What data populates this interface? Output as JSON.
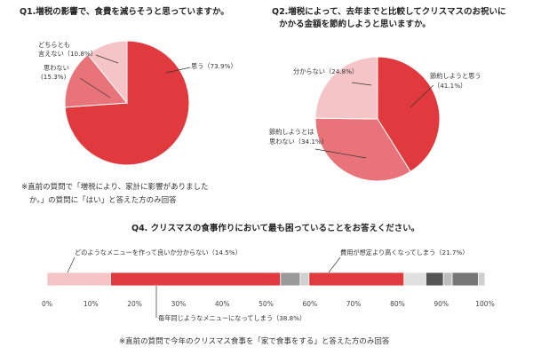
{
  "q1": {
    "title": "Q1.増税の影響で、食費を減らそうと思っていますか。",
    "labels": {
      "yes": "思う（73.9%）",
      "no_1": "思わない",
      "no_2": "(15.3%)",
      "neutral_1": "どちらとも",
      "neutral_2": "言えない（10.8%）"
    },
    "note_1": "※直前の質問で「増税により、家計に影響がありました",
    "note_2": "か。」の質問に「はい」と答えた方のみ回答"
  },
  "q2": {
    "title_1": "Q2.増税によって、去年までと比較してクリスマスのお祝いに",
    "title_2": "かかる金額を節約しようと思いますか。",
    "labels": {
      "save_1": "節約しようと思う",
      "save_2": "（41.1%）",
      "not_save_1": "節約しようとは",
      "not_save_2": "思わない（34.1%）",
      "unknown": "分からない（24.8%）"
    }
  },
  "q4": {
    "title": "Q4. クリスマスの食事作りにおいて最も困っていることをお答えください。",
    "labels": {
      "menu_unknown": "どのようなメニューを作って良いか分からない（14.5%）",
      "cost_high": "費用が想定より高くなってしまう（21.7%）",
      "same_menu": "毎年同じようなメニューになってしまう（38.8%）"
    },
    "ticks": [
      "0%",
      "10%",
      "20%",
      "30%",
      "40%",
      "50%",
      "60%",
      "70%",
      "80%",
      "90%",
      "100%"
    ],
    "note": "※直前の質問で今年のクリスマス食事を「家で食事をする」と答えた方のみ回答"
  },
  "chart_data": [
    {
      "type": "pie",
      "title": "Q1.増税の影響で、食費を減らそうと思っていますか。",
      "categories": [
        "思う",
        "思わない",
        "どちらとも言えない"
      ],
      "values": [
        73.9,
        15.3,
        10.8
      ],
      "colors": [
        "#e03a3e",
        "#e8747a",
        "#f4c4c6"
      ]
    },
    {
      "type": "pie",
      "title": "Q2.増税によって、去年までと比較してクリスマスのお祝いにかかる金額を節約しようと思いますか。",
      "categories": [
        "節約しようと思う",
        "節約しようとは思わない",
        "分からない"
      ],
      "values": [
        41.1,
        34.1,
        24.8
      ],
      "colors": [
        "#e03a3e",
        "#e8747a",
        "#f4c4c6"
      ]
    },
    {
      "type": "bar",
      "orientation": "horizontal-stacked",
      "title": "Q4. クリスマスの食事作りにおいて最も困っていることをお答えください。",
      "xlim": [
        0,
        100
      ],
      "series": [
        {
          "name": "どのようなメニューを作って良いか分からない",
          "value": 14.5,
          "color": "#f4c4c6"
        },
        {
          "name": "毎年同じようなメニューになってしまう",
          "value": 38.8,
          "color": "#e03a3e"
        },
        {
          "name": "",
          "value": 4.5,
          "color": "#9a9a9a"
        },
        {
          "name": "",
          "value": 2.0,
          "color": "#d0d0d0"
        },
        {
          "name": "費用が想定より高くなってしまう",
          "value": 21.7,
          "color": "#e03a3e"
        },
        {
          "name": "",
          "value": 5.0,
          "color": "#e0e0e0"
        },
        {
          "name": "",
          "value": 4.0,
          "color": "#555555"
        },
        {
          "name": "",
          "value": 2.0,
          "color": "#bdbdbd"
        },
        {
          "name": "",
          "value": 6.0,
          "color": "#777777"
        },
        {
          "name": "",
          "value": 1.5,
          "color": "#cfcfcf"
        }
      ]
    }
  ]
}
